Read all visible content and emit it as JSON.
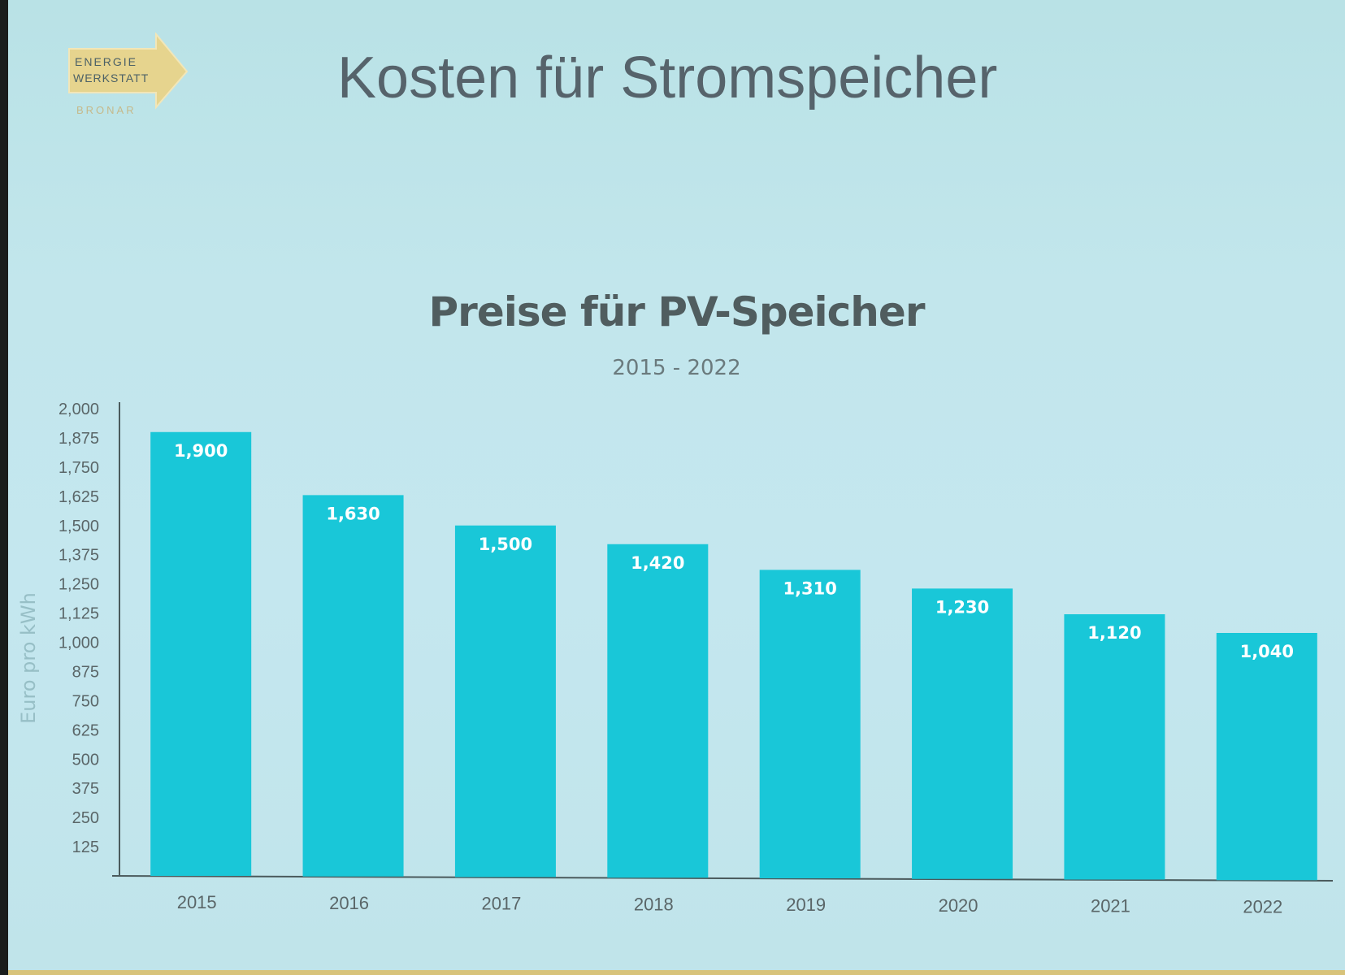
{
  "slide": {
    "title": "Kosten für Stromspeicher",
    "logo": {
      "line1": "ENERGIE",
      "line2": "WERKSTATT",
      "line3": "BRONAR"
    }
  },
  "colors": {
    "bar": "#19c7d8",
    "bar_label": "#ffffff",
    "axis": "#4a5a5c",
    "tick_text": "#5a6668",
    "ylabel_text": "#97bfc6",
    "accent_gold": "#d8c37a"
  },
  "chart_data": {
    "type": "bar",
    "title": "Preise für PV-Speicher",
    "subtitle": "2015 - 2022",
    "xlabel": "",
    "ylabel": "Euro pro kWh",
    "categories": [
      "2015",
      "2016",
      "2017",
      "2018",
      "2019",
      "2020",
      "2021",
      "2022"
    ],
    "values": [
      1900,
      1630,
      1500,
      1420,
      1310,
      1230,
      1120,
      1040
    ],
    "value_labels": [
      "1,900",
      "1,630",
      "1,500",
      "1,420",
      "1,310",
      "1,230",
      "1,120",
      "1,040"
    ],
    "ylim": [
      0,
      2000
    ],
    "yticks": [
      125,
      250,
      375,
      500,
      625,
      750,
      875,
      1000,
      1125,
      1250,
      1375,
      1500,
      1625,
      1750,
      1875,
      2000
    ],
    "ytick_labels": [
      "125",
      "250",
      "375",
      "500",
      "625",
      "750",
      "875",
      "1,000",
      "1,125",
      "1,250",
      "1,375",
      "1,500",
      "1,625",
      "1,750",
      "1,875",
      "2,000"
    ],
    "grid": false,
    "legend": "none"
  }
}
